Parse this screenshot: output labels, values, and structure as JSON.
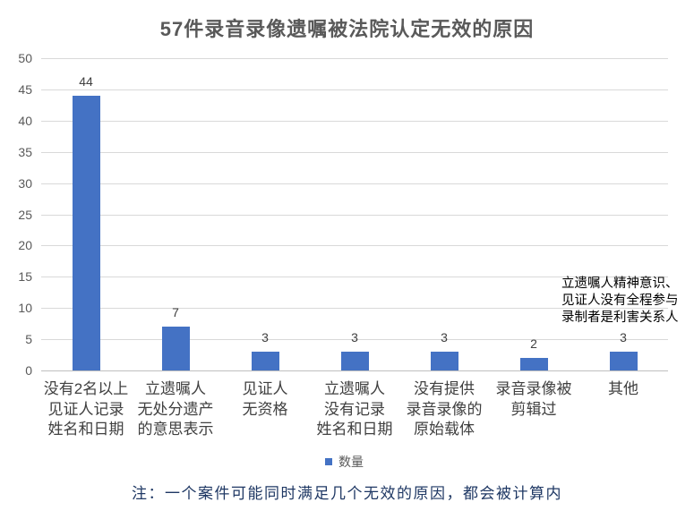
{
  "chart_data": {
    "type": "bar",
    "title": "57件录音录像遗嘱被法院认定无效的原因",
    "categories": [
      "没有2名以上\n见证人记录\n姓名和日期",
      "立遗嘱人\n无处分遗产\n的意思表示",
      "见证人\n无资格",
      "立遗嘱人\n没有记录\n姓名和日期",
      "没有提供\n录音录像的\n原始载体",
      "录音录像被\n剪辑过",
      "其他"
    ],
    "series": [
      {
        "name": "数量",
        "color": "#4472C4",
        "values": [
          44,
          7,
          3,
          3,
          3,
          2,
          3
        ]
      }
    ],
    "ylim": [
      0,
      50
    ],
    "y_ticks": [
      0,
      5,
      10,
      15,
      20,
      25,
      30,
      35,
      40,
      45,
      50
    ],
    "grid": true,
    "legend_position": "bottom",
    "annotations": [
      {
        "text": "立遗嘱人精神意识、\n见证人没有全程参与\n录制者是利害关系人"
      }
    ]
  },
  "footnote": "注：一个案件可能同时满足几个无效的原因，都会被计算内",
  "colors": {
    "title": "#595959",
    "footnote": "#1F3864"
  }
}
